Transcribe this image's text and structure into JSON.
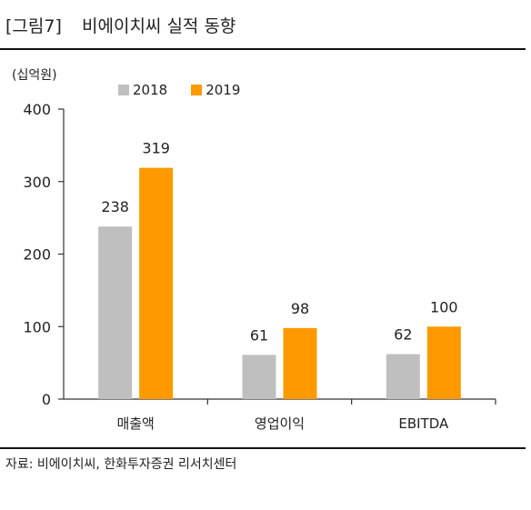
{
  "figure": {
    "number": "[그림7]",
    "title": "비에이치씨 실적 동향",
    "source": "자료: 비에이치씨, 한화투자증권 리서치센터"
  },
  "chart_data": {
    "type": "bar",
    "title": "비에이치씨 실적 동향",
    "unit_label": "(십억원)",
    "xlabel": "",
    "ylabel": "",
    "categories": [
      "매출액",
      "영업이익",
      "EBITDA"
    ],
    "series": [
      {
        "name": "2018",
        "color": "#BFBFBF",
        "values": [
          238,
          61,
          62
        ]
      },
      {
        "name": "2019",
        "color": "#FF9900",
        "values": [
          319,
          98,
          100
        ]
      }
    ],
    "ylim": [
      0,
      400
    ],
    "yticks": [
      0,
      100,
      200,
      300,
      400
    ],
    "grid": false,
    "legend_position": "top"
  }
}
